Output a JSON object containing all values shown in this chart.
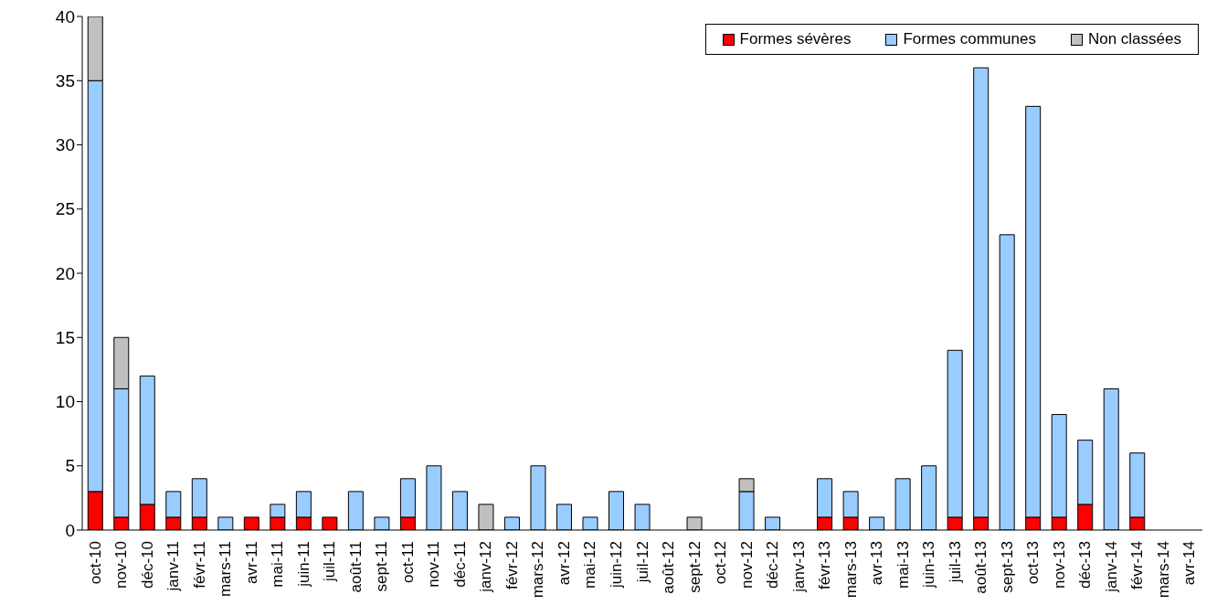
{
  "chart_data": {
    "type": "bar",
    "stacked": true,
    "categories": [
      "oct-10",
      "nov-10",
      "déc-10",
      "janv-11",
      "févr-11",
      "mars-11",
      "avr-11",
      "mai-11",
      "juin-11",
      "juil-11",
      "août-11",
      "sept-11",
      "oct-11",
      "nov-11",
      "déc-11",
      "janv-12",
      "févr-12",
      "mars-12",
      "avr-12",
      "mai-12",
      "juin-12",
      "juil-12",
      "août-12",
      "sept-12",
      "oct-12",
      "nov-12",
      "déc-12",
      "janv-13",
      "févr-13",
      "mars-13",
      "avr-13",
      "mai-13",
      "juin-13",
      "juil-13",
      "août-13",
      "sept-13",
      "oct-13",
      "nov-13",
      "déc-13",
      "janv-14",
      "févr-14",
      "mars-14",
      "avr-14"
    ],
    "series": [
      {
        "name": "Formes sévères",
        "color": "#ff0000",
        "values": [
          3,
          1,
          2,
          1,
          1,
          0,
          1,
          1,
          1,
          1,
          0,
          0,
          1,
          0,
          0,
          0,
          0,
          0,
          0,
          0,
          0,
          0,
          0,
          0,
          0,
          0,
          0,
          0,
          1,
          1,
          0,
          0,
          0,
          1,
          1,
          0,
          1,
          1,
          2,
          0,
          1,
          0,
          0
        ]
      },
      {
        "name": "Formes communes",
        "color": "#99ccff",
        "values": [
          32,
          10,
          10,
          2,
          3,
          1,
          0,
          1,
          2,
          0,
          3,
          1,
          3,
          5,
          3,
          0,
          1,
          5,
          2,
          1,
          3,
          2,
          0,
          0,
          0,
          3,
          1,
          0,
          3,
          2,
          1,
          4,
          5,
          13,
          35,
          23,
          32,
          8,
          5,
          11,
          5,
          0,
          0
        ]
      },
      {
        "name": "Non classées",
        "color": "#c0c0c0",
        "values": [
          5,
          4,
          0,
          0,
          0,
          0,
          0,
          0,
          0,
          0,
          0,
          0,
          0,
          0,
          0,
          2,
          0,
          0,
          0,
          0,
          0,
          0,
          0,
          1,
          0,
          1,
          0,
          0,
          0,
          0,
          0,
          0,
          0,
          0,
          0,
          0,
          0,
          0,
          0,
          0,
          0,
          0,
          0
        ]
      }
    ],
    "ylim": [
      0,
      40
    ],
    "yticks": [
      0,
      5,
      10,
      15,
      20,
      25,
      30,
      35,
      40
    ],
    "legend": "top right"
  }
}
